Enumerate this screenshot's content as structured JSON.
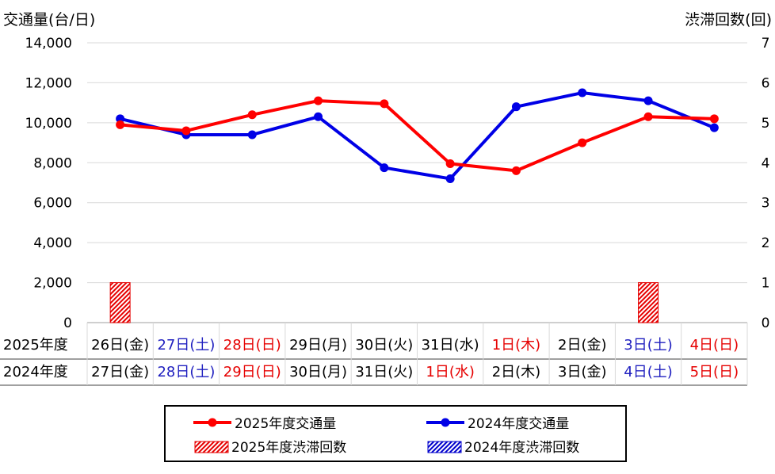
{
  "chart_data": {
    "type": "line",
    "left_axis_title": "交通量(台/日)",
    "right_axis_title": "渋滞回数(回)",
    "ylim": [
      0,
      14000
    ],
    "y2lim": [
      0,
      7
    ],
    "y_ticks": [
      "0",
      "2,000",
      "4,000",
      "6,000",
      "8,000",
      "10,000",
      "12,000",
      "14,000"
    ],
    "y2_ticks": [
      "0",
      "1",
      "2",
      "3",
      "4",
      "5",
      "6",
      "7"
    ],
    "row_labels": [
      "2025年度",
      "2024年度"
    ],
    "categories_2025": [
      "26日(金)",
      "27日(土)",
      "28日(日)",
      "29日(月)",
      "30日(火)",
      "31日(水)",
      "1日(木)",
      "2日(金)",
      "3日(土)",
      "4日(日)"
    ],
    "categories_2024": [
      "27日(金)",
      "28日(土)",
      "29日(日)",
      "30日(月)",
      "31日(火)",
      "1日(水)",
      "2日(木)",
      "3日(金)",
      "4日(土)",
      "5日(日)"
    ],
    "category_colors_2025": [
      "#000000",
      "#1f1fbf",
      "#e60000",
      "#000000",
      "#000000",
      "#000000",
      "#e60000",
      "#000000",
      "#1f1fbf",
      "#e60000"
    ],
    "category_colors_2024": [
      "#000000",
      "#1f1fbf",
      "#e60000",
      "#000000",
      "#000000",
      "#e60000",
      "#000000",
      "#000000",
      "#1f1fbf",
      "#e60000"
    ],
    "series": [
      {
        "name": "2025年度交通量",
        "kind": "line",
        "axis": "left",
        "color": "#ff0000",
        "values": [
          9900,
          9600,
          10400,
          11100,
          10950,
          7950,
          7600,
          9000,
          10300,
          10200
        ]
      },
      {
        "name": "2024年度交通量",
        "kind": "line",
        "axis": "left",
        "color": "#0000e6",
        "values": [
          10200,
          9400,
          9400,
          10300,
          7750,
          7200,
          10800,
          11500,
          11100,
          9750
        ]
      },
      {
        "name": "2025年度渋滞回数",
        "kind": "bar",
        "axis": "right",
        "color": "#e60000",
        "values": [
          1,
          0,
          0,
          0,
          0,
          0,
          0,
          0,
          1,
          0
        ]
      },
      {
        "name": "2024年度渋滞回数",
        "kind": "bar",
        "axis": "right",
        "color": "#0000cc",
        "values": [
          0,
          0,
          0,
          0,
          0,
          0,
          0,
          0,
          0,
          0
        ]
      }
    ],
    "legend_position": "bottom"
  }
}
